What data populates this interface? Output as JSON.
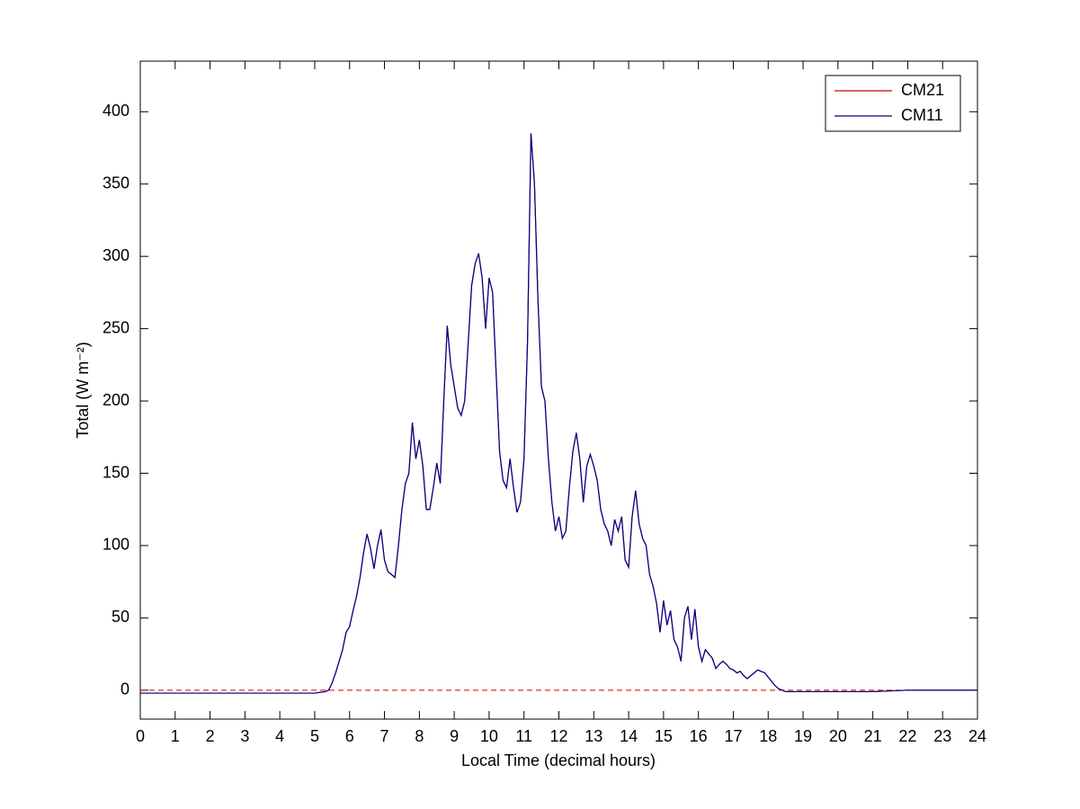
{
  "chart_data": {
    "type": "line",
    "xlabel": "Local Time (decimal hours)",
    "ylabel": "Total (W m⁻²)",
    "x": [
      0,
      1,
      2,
      3,
      4,
      5,
      5.3,
      5.4,
      5.5,
      5.6,
      5.7,
      5.8,
      5.9,
      6,
      6.1,
      6.2,
      6.3,
      6.4,
      6.5,
      6.6,
      6.7,
      6.8,
      6.9,
      7,
      7.1,
      7.2,
      7.3,
      7.4,
      7.5,
      7.6,
      7.7,
      7.8,
      7.9,
      8,
      8.1,
      8.2,
      8.3,
      8.4,
      8.5,
      8.6,
      8.7,
      8.8,
      8.9,
      9,
      9.1,
      9.2,
      9.3,
      9.4,
      9.5,
      9.6,
      9.7,
      9.8,
      9.9,
      10,
      10.1,
      10.2,
      10.3,
      10.4,
      10.5,
      10.6,
      10.7,
      10.8,
      10.9,
      11,
      11.1,
      11.2,
      11.3,
      11.4,
      11.5,
      11.6,
      11.7,
      11.8,
      11.9,
      12,
      12.1,
      12.2,
      12.3,
      12.4,
      12.5,
      12.6,
      12.7,
      12.8,
      12.9,
      13,
      13.1,
      13.2,
      13.3,
      13.4,
      13.5,
      13.6,
      13.7,
      13.8,
      13.9,
      14,
      14.1,
      14.2,
      14.3,
      14.4,
      14.5,
      14.6,
      14.7,
      14.8,
      14.9,
      15,
      15.1,
      15.2,
      15.3,
      15.4,
      15.5,
      15.6,
      15.7,
      15.8,
      15.9,
      16,
      16.1,
      16.2,
      16.3,
      16.4,
      16.5,
      16.6,
      16.7,
      16.8,
      16.9,
      17,
      17.1,
      17.2,
      17.3,
      17.4,
      17.5,
      17.6,
      17.7,
      17.8,
      17.9,
      18,
      18.1,
      18.2,
      18.3,
      18.4,
      18.5,
      18.6,
      19,
      20,
      21,
      22,
      23,
      24
    ],
    "series": [
      {
        "name": "CM21",
        "color": "#cc0000",
        "values": [
          -2,
          -2,
          -2,
          -2,
          -2,
          -2,
          -1,
          0,
          5,
          12,
          20,
          28,
          40,
          44,
          55,
          65,
          78,
          95,
          108,
          98,
          84,
          100,
          111,
          90,
          82,
          80,
          78,
          100,
          125,
          143,
          150,
          185,
          160,
          173,
          155,
          125,
          125,
          140,
          157,
          143,
          200,
          252,
          225,
          210,
          195,
          190,
          200,
          240,
          280,
          295,
          302,
          285,
          250,
          285,
          275,
          220,
          165,
          145,
          140,
          160,
          140,
          123,
          130,
          160,
          240,
          385,
          350,
          270,
          210,
          200,
          160,
          130,
          110,
          120,
          105,
          110,
          140,
          165,
          178,
          160,
          130,
          155,
          163,
          155,
          145,
          125,
          115,
          110,
          100,
          118,
          110,
          120,
          90,
          85,
          120,
          138,
          115,
          105,
          100,
          80,
          72,
          60,
          40,
          62,
          45,
          55,
          35,
          30,
          20,
          50,
          58,
          35,
          56,
          30,
          20,
          28,
          25,
          22,
          15,
          18,
          20,
          18,
          15,
          14,
          12,
          13,
          10,
          8,
          10,
          12,
          14,
          13,
          12,
          9,
          6,
          3,
          1,
          0,
          -1,
          -1,
          -1,
          -1,
          -1,
          0,
          0,
          0
        ]
      },
      {
        "name": "CM11",
        "color": "#00008b",
        "values": [
          -2,
          -2,
          -2,
          -2,
          -2,
          -2,
          -1,
          0,
          5,
          12,
          20,
          28,
          40,
          44,
          55,
          65,
          78,
          95,
          108,
          98,
          84,
          100,
          111,
          90,
          82,
          80,
          78,
          100,
          125,
          143,
          150,
          185,
          160,
          173,
          155,
          125,
          125,
          140,
          157,
          143,
          200,
          252,
          225,
          210,
          195,
          190,
          200,
          240,
          280,
          295,
          302,
          285,
          250,
          285,
          275,
          220,
          165,
          145,
          140,
          160,
          140,
          123,
          130,
          160,
          240,
          385,
          350,
          270,
          210,
          200,
          160,
          130,
          110,
          120,
          105,
          110,
          140,
          165,
          178,
          160,
          130,
          155,
          163,
          155,
          145,
          125,
          115,
          110,
          100,
          118,
          110,
          120,
          90,
          85,
          120,
          138,
          115,
          105,
          100,
          80,
          72,
          60,
          40,
          62,
          45,
          55,
          35,
          30,
          20,
          50,
          58,
          35,
          56,
          30,
          20,
          28,
          25,
          22,
          15,
          18,
          20,
          18,
          15,
          14,
          12,
          13,
          10,
          8,
          10,
          12,
          14,
          13,
          12,
          9,
          6,
          3,
          1,
          0,
          -1,
          -1,
          -1,
          -1,
          -1,
          0,
          0,
          0
        ]
      }
    ],
    "reference_line": {
      "value": 0,
      "color": "#cc0000",
      "dashed": true
    },
    "xlim": [
      0,
      24
    ],
    "xticks": [
      0,
      1,
      2,
      3,
      4,
      5,
      6,
      7,
      8,
      9,
      10,
      11,
      12,
      13,
      14,
      15,
      16,
      17,
      18,
      19,
      20,
      21,
      22,
      23,
      24
    ],
    "ylim": [
      -20,
      435
    ],
    "yticks": [
      0,
      50,
      100,
      150,
      200,
      250,
      300,
      350,
      400
    ],
    "grid": false,
    "legend": "top-right"
  }
}
